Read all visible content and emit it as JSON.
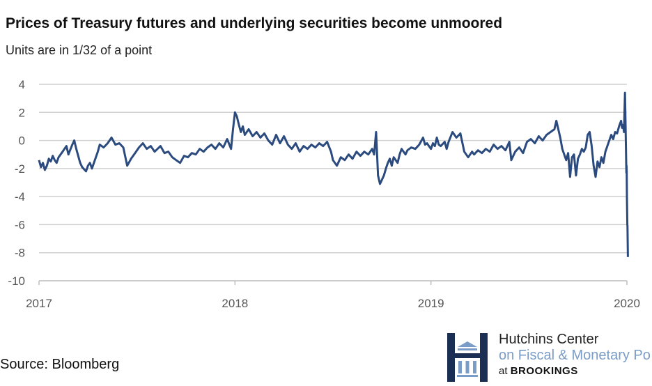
{
  "title": "Prices of Treasury futures and underlying securities become unmoored",
  "subtitle": "Units are in 1/32 of a point",
  "source": "Source: Bloomberg",
  "logo": {
    "line1": "Hutchins Center",
    "line2": "on Fiscal & Monetary Po",
    "line3_prefix": "at ",
    "line3_brand": "BROOKINGS",
    "icon": "hutchins-h-logo-icon"
  },
  "colors": {
    "line": "#2b4a7e",
    "grid": "#d0d0d0",
    "logo_dark": "#1b2f55",
    "logo_light": "#7a9cc6"
  },
  "chart_data": {
    "type": "line",
    "title": "Prices of Treasury futures and underlying securities become unmoored",
    "subtitle": "Units are in 1/32 of a point",
    "xlabel": "",
    "ylabel": "",
    "xlim": [
      2017,
      2020
    ],
    "ylim": [
      -10,
      4
    ],
    "x_ticks": [
      "2017",
      "2018",
      "2019",
      "2020"
    ],
    "y_ticks": [
      "4",
      "2",
      "0",
      "-2",
      "-4",
      "-6",
      "-8",
      "-10"
    ],
    "grid": "horizontal",
    "series": [
      {
        "points": [
          [
            2017.0,
            -1.4
          ],
          [
            2017.01,
            -1.9
          ],
          [
            2017.02,
            -1.6
          ],
          [
            2017.03,
            -2.1
          ],
          [
            2017.04,
            -1.8
          ],
          [
            2017.05,
            -1.3
          ],
          [
            2017.06,
            -1.5
          ],
          [
            2017.07,
            -1.1
          ],
          [
            2017.08,
            -1.4
          ],
          [
            2017.09,
            -1.6
          ],
          [
            2017.1,
            -1.2
          ],
          [
            2017.12,
            -0.8
          ],
          [
            2017.14,
            -0.4
          ],
          [
            2017.15,
            -1.0
          ],
          [
            2017.17,
            -0.3
          ],
          [
            2017.18,
            0.0
          ],
          [
            2017.19,
            -0.6
          ],
          [
            2017.21,
            -1.6
          ],
          [
            2017.22,
            -1.9
          ],
          [
            2017.24,
            -2.2
          ],
          [
            2017.25,
            -1.8
          ],
          [
            2017.26,
            -1.6
          ],
          [
            2017.27,
            -2.0
          ],
          [
            2017.29,
            -1.2
          ],
          [
            2017.3,
            -0.8
          ],
          [
            2017.31,
            -0.3
          ],
          [
            2017.33,
            -0.5
          ],
          [
            2017.35,
            -0.2
          ],
          [
            2017.37,
            0.2
          ],
          [
            2017.39,
            -0.3
          ],
          [
            2017.41,
            -0.2
          ],
          [
            2017.43,
            -0.5
          ],
          [
            2017.45,
            -1.8
          ],
          [
            2017.47,
            -1.3
          ],
          [
            2017.49,
            -0.9
          ],
          [
            2017.51,
            -0.5
          ],
          [
            2017.53,
            -0.2
          ],
          [
            2017.55,
            -0.6
          ],
          [
            2017.57,
            -0.4
          ],
          [
            2017.59,
            -0.8
          ],
          [
            2017.62,
            -0.4
          ],
          [
            2017.64,
            -0.9
          ],
          [
            2017.66,
            -0.8
          ],
          [
            2017.68,
            -1.2
          ],
          [
            2017.7,
            -1.4
          ],
          [
            2017.72,
            -1.6
          ],
          [
            2017.74,
            -1.1
          ],
          [
            2017.76,
            -1.2
          ],
          [
            2017.78,
            -0.9
          ],
          [
            2017.8,
            -1.0
          ],
          [
            2017.82,
            -0.6
          ],
          [
            2017.84,
            -0.8
          ],
          [
            2017.86,
            -0.5
          ],
          [
            2017.88,
            -0.3
          ],
          [
            2017.9,
            -0.6
          ],
          [
            2017.92,
            -0.2
          ],
          [
            2017.94,
            -0.5
          ],
          [
            2017.96,
            0.1
          ],
          [
            2017.98,
            -0.6
          ],
          [
            2017.99,
            0.8
          ],
          [
            2018.0,
            2.0
          ],
          [
            2018.01,
            1.7
          ],
          [
            2018.02,
            1.1
          ],
          [
            2018.03,
            0.6
          ],
          [
            2018.04,
            1.0
          ],
          [
            2018.05,
            0.4
          ],
          [
            2018.07,
            0.8
          ],
          [
            2018.09,
            0.3
          ],
          [
            2018.11,
            0.6
          ],
          [
            2018.13,
            0.2
          ],
          [
            2018.15,
            0.5
          ],
          [
            2018.17,
            0.0
          ],
          [
            2018.19,
            -0.3
          ],
          [
            2018.21,
            0.4
          ],
          [
            2018.23,
            -0.2
          ],
          [
            2018.25,
            0.3
          ],
          [
            2018.27,
            -0.3
          ],
          [
            2018.29,
            -0.6
          ],
          [
            2018.31,
            -0.2
          ],
          [
            2018.33,
            -0.8
          ],
          [
            2018.35,
            -0.4
          ],
          [
            2018.37,
            -0.6
          ],
          [
            2018.39,
            -0.3
          ],
          [
            2018.41,
            -0.5
          ],
          [
            2018.43,
            -0.2
          ],
          [
            2018.45,
            -0.4
          ],
          [
            2018.47,
            -0.1
          ],
          [
            2018.49,
            -0.8
          ],
          [
            2018.5,
            -1.4
          ],
          [
            2018.52,
            -1.8
          ],
          [
            2018.54,
            -1.2
          ],
          [
            2018.56,
            -1.4
          ],
          [
            2018.58,
            -1.0
          ],
          [
            2018.6,
            -1.3
          ],
          [
            2018.62,
            -0.8
          ],
          [
            2018.64,
            -1.1
          ],
          [
            2018.66,
            -0.8
          ],
          [
            2018.68,
            -1.0
          ],
          [
            2018.7,
            -0.6
          ],
          [
            2018.71,
            -1.0
          ],
          [
            2018.72,
            0.6
          ],
          [
            2018.73,
            -2.5
          ],
          [
            2018.74,
            -3.1
          ],
          [
            2018.75,
            -2.8
          ],
          [
            2018.76,
            -2.5
          ],
          [
            2018.77,
            -2.0
          ],
          [
            2018.78,
            -1.6
          ],
          [
            2018.79,
            -1.3
          ],
          [
            2018.8,
            -1.8
          ],
          [
            2018.81,
            -1.2
          ],
          [
            2018.83,
            -1.6
          ],
          [
            2018.84,
            -1.0
          ],
          [
            2018.85,
            -0.6
          ],
          [
            2018.87,
            -1.0
          ],
          [
            2018.88,
            -0.7
          ],
          [
            2018.9,
            -0.5
          ],
          [
            2018.92,
            -0.6
          ],
          [
            2018.94,
            -0.3
          ],
          [
            2018.96,
            0.2
          ],
          [
            2018.97,
            -0.3
          ],
          [
            2018.98,
            -0.2
          ],
          [
            2019.0,
            -0.6
          ],
          [
            2019.01,
            -0.2
          ],
          [
            2019.02,
            -0.4
          ],
          [
            2019.03,
            0.2
          ],
          [
            2019.04,
            -0.3
          ],
          [
            2019.05,
            -0.4
          ],
          [
            2019.07,
            -0.1
          ],
          [
            2019.08,
            -0.6
          ],
          [
            2019.09,
            -0.1
          ],
          [
            2019.11,
            0.6
          ],
          [
            2019.13,
            0.2
          ],
          [
            2019.15,
            0.5
          ],
          [
            2019.17,
            -0.8
          ],
          [
            2019.19,
            -1.2
          ],
          [
            2019.21,
            -0.8
          ],
          [
            2019.22,
            -1.0
          ],
          [
            2019.24,
            -0.7
          ],
          [
            2019.26,
            -0.9
          ],
          [
            2019.28,
            -0.6
          ],
          [
            2019.3,
            -0.8
          ],
          [
            2019.32,
            -0.3
          ],
          [
            2019.34,
            -0.6
          ],
          [
            2019.36,
            -0.4
          ],
          [
            2019.38,
            -0.7
          ],
          [
            2019.4,
            -0.1
          ],
          [
            2019.41,
            -1.4
          ],
          [
            2019.43,
            -0.8
          ],
          [
            2019.45,
            -0.5
          ],
          [
            2019.47,
            -0.9
          ],
          [
            2019.49,
            -0.1
          ],
          [
            2019.51,
            0.1
          ],
          [
            2019.53,
            -0.2
          ],
          [
            2019.55,
            0.3
          ],
          [
            2019.57,
            0.0
          ],
          [
            2019.59,
            0.4
          ],
          [
            2019.61,
            0.6
          ],
          [
            2019.63,
            0.8
          ],
          [
            2019.64,
            1.4
          ],
          [
            2019.65,
            0.8
          ],
          [
            2019.66,
            0.2
          ],
          [
            2019.67,
            -0.6
          ],
          [
            2019.68,
            -1.0
          ],
          [
            2019.69,
            -1.4
          ],
          [
            2019.7,
            -0.9
          ],
          [
            2019.71,
            -2.6
          ],
          [
            2019.72,
            -1.2
          ],
          [
            2019.73,
            -1.0
          ],
          [
            2019.74,
            -2.5
          ],
          [
            2019.75,
            -1.3
          ],
          [
            2019.76,
            -1.0
          ],
          [
            2019.77,
            -0.6
          ],
          [
            2019.78,
            -0.8
          ],
          [
            2019.79,
            -0.5
          ],
          [
            2019.8,
            0.4
          ],
          [
            2019.81,
            0.6
          ],
          [
            2019.82,
            -0.4
          ],
          [
            2019.83,
            -1.8
          ],
          [
            2019.84,
            -2.6
          ],
          [
            2019.85,
            -1.5
          ],
          [
            2019.86,
            -1.9
          ],
          [
            2019.87,
            -1.2
          ],
          [
            2019.88,
            -1.6
          ],
          [
            2019.89,
            -0.8
          ],
          [
            2019.9,
            -0.4
          ],
          [
            2019.91,
            0.0
          ],
          [
            2019.92,
            0.4
          ],
          [
            2019.93,
            0.1
          ],
          [
            2019.94,
            0.6
          ],
          [
            2019.95,
            0.5
          ],
          [
            2019.96,
            1.0
          ],
          [
            2019.97,
            1.4
          ],
          [
            2019.975,
            0.9
          ],
          [
            2019.98,
            1.1
          ],
          [
            2019.985,
            0.6
          ],
          [
            2019.99,
            3.4
          ],
          [
            2019.993,
            1.2
          ],
          [
            2019.995,
            -0.5
          ],
          [
            2019.997,
            -2.3
          ],
          [
            2019.998,
            -1.8
          ],
          [
            2019.999,
            -2.2
          ],
          [
            2020.0,
            -4.0
          ],
          [
            2020.002,
            -6.0
          ],
          [
            2020.003,
            -6.1
          ],
          [
            2020.005,
            -8.3
          ]
        ]
      }
    ]
  }
}
